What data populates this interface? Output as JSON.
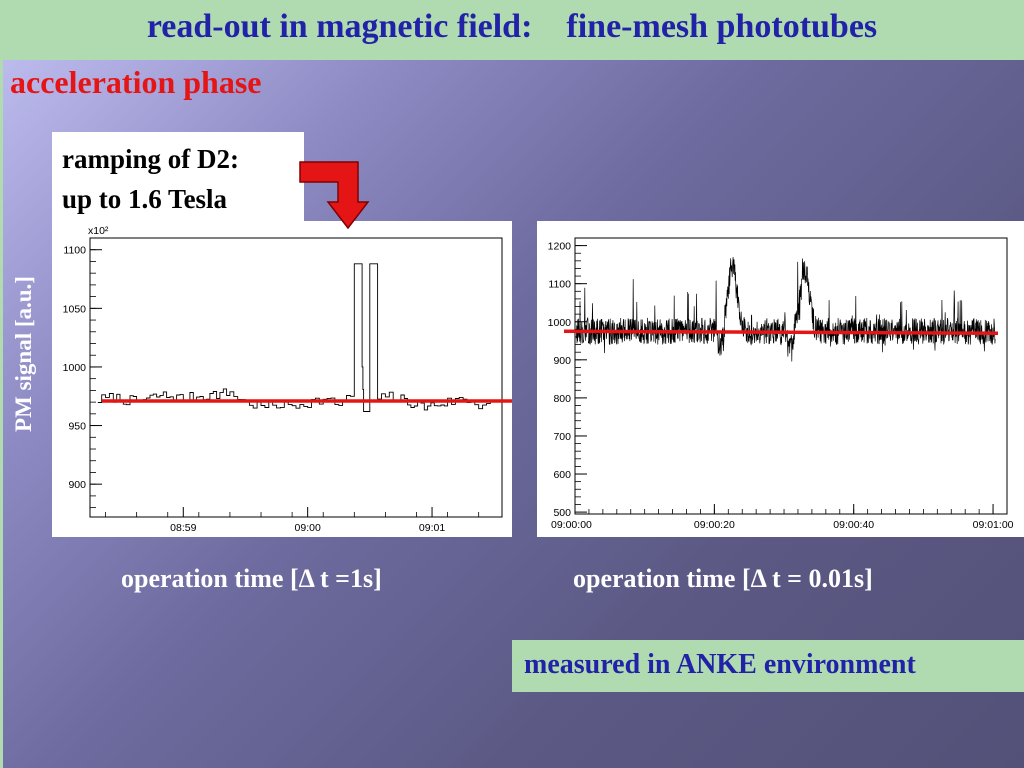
{
  "slide": {
    "title": "read-out in magnetic field:    fine-mesh phototubes",
    "subtitle": "acceleration phase",
    "note": {
      "line1": "ramping of D2:",
      "line2": "up to 1.6 Tesla"
    },
    "ylabel": "PM signal [a.u.]",
    "caption_left": "operation time [Δ t =1s]",
    "caption_right": "operation time [Δ t = 0.01s]",
    "footer": "measured in ANKE environment",
    "colors": {
      "title": "#2222a8",
      "subtitle": "#e61515",
      "title_bar": "#b0dbb0",
      "arrow": "#e61515",
      "baseline": "#e61515"
    }
  },
  "chart_data": [
    {
      "type": "line",
      "y_multiplier_label": "x10²",
      "x_ticks": [
        {
          "label": "08:59",
          "t": 8.4
        },
        {
          "label": "09:00",
          "t": 10.0
        },
        {
          "label": "09:01",
          "t": 11.6
        }
      ],
      "xlim": [
        7.2,
        12.5
      ],
      "ylim": [
        872,
        1110
      ],
      "y_ticks": [
        900,
        950,
        1000,
        1050,
        1100
      ],
      "baseline": 971,
      "series": [
        {
          "values": [
            [
              7.3,
              972
            ],
            [
              7.5,
              974
            ],
            [
              7.8,
              970
            ],
            [
              8.1,
              976
            ],
            [
              8.4,
              973
            ],
            [
              8.7,
              976
            ],
            [
              9.0,
              978
            ],
            [
              9.2,
              970
            ],
            [
              9.4,
              966
            ],
            [
              9.6,
              968
            ],
            [
              9.8,
              967
            ],
            [
              10.0,
              970
            ],
            [
              10.2,
              972
            ],
            [
              10.4,
              968
            ],
            [
              10.55,
              975
            ],
            [
              10.6,
              1088
            ],
            [
              10.65,
              1088
            ],
            [
              10.7,
              1000
            ],
            [
              10.72,
              962
            ],
            [
              10.8,
              1088
            ],
            [
              10.85,
              1088
            ],
            [
              10.9,
              970
            ],
            [
              11.0,
              976
            ],
            [
              11.2,
              972
            ],
            [
              11.5,
              966
            ],
            [
              11.8,
              970
            ],
            [
              12.0,
              973
            ],
            [
              12.2,
              968
            ],
            [
              12.4,
              970
            ]
          ]
        }
      ]
    },
    {
      "type": "line",
      "x_ticks": [
        "09:00:00",
        "09:00:20",
        "09:00:40",
        "09:01:00"
      ],
      "x_tick_values": [
        0,
        20,
        40,
        60
      ],
      "xlim": [
        0,
        62
      ],
      "ylim": [
        495,
        1220
      ],
      "y_ticks": [
        500,
        600,
        700,
        800,
        900,
        1000,
        1100,
        1200
      ],
      "baseline": 975,
      "series": [
        {
          "values": [
            [
              0.2,
              975
            ],
            [
              10,
              980
            ],
            [
              17,
              970
            ],
            [
              22,
              1150
            ],
            [
              23,
              1150
            ],
            [
              25,
              975
            ],
            [
              31,
              975
            ],
            [
              32,
              1140
            ],
            [
              34,
              1140
            ],
            [
              35,
              975
            ],
            [
              46,
              970
            ],
            [
              60,
              975
            ]
          ]
        }
      ]
    }
  ]
}
